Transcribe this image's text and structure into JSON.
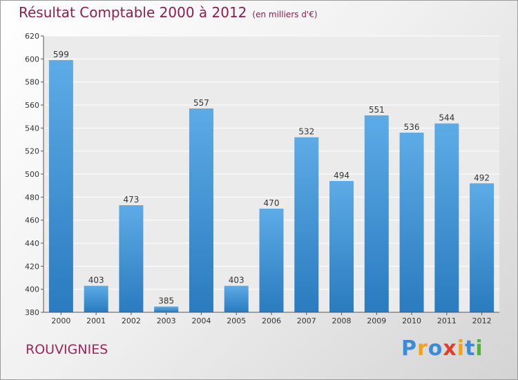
{
  "title": "Résultat Comptable 2000 à 2012",
  "subtitle": "(en milliers d'€)",
  "place": "ROUVIGNIES",
  "logo": {
    "letters": [
      "P",
      "r",
      "o",
      "x",
      "i",
      "t",
      "i"
    ],
    "colors": [
      "#3a8bd8",
      "#f4a11a",
      "#3a8bd8",
      "#e23c2c",
      "#f4a11a",
      "#3a8bd8",
      "#4fb33a"
    ]
  },
  "colors": {
    "bar_dark": "#2a7bbf",
    "bar_light": "#5dabe6",
    "title": "#8e1d4c"
  },
  "chart_data": {
    "type": "bar",
    "categories": [
      "2000",
      "2001",
      "2002",
      "2003",
      "2004",
      "2005",
      "2006",
      "2007",
      "2008",
      "2009",
      "2010",
      "2011",
      "2012"
    ],
    "values": [
      599,
      403,
      473,
      385,
      557,
      403,
      470,
      532,
      494,
      551,
      536,
      544,
      492
    ],
    "ylim": [
      380,
      620
    ],
    "yticks": [
      380,
      400,
      420,
      440,
      460,
      480,
      500,
      520,
      540,
      560,
      580,
      600,
      620
    ],
    "grid": true,
    "data_labels": true
  }
}
